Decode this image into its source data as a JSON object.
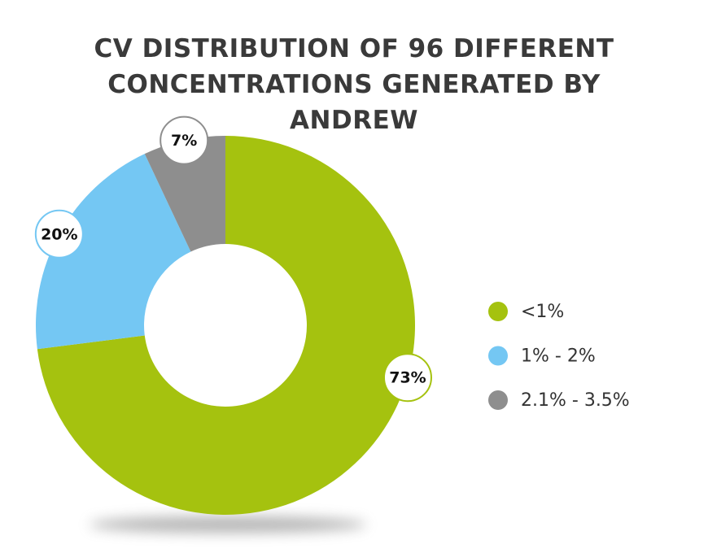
{
  "chart_data": {
    "type": "pie",
    "donut": true,
    "title": "CV DISTRIBUTION OF 96 DIFFERENT CONCENTRATIONS GENERATED BY ANDREW",
    "categories": [
      "<1%",
      "1% - 2%",
      "2.1% - 3.5%"
    ],
    "values": [
      73,
      20,
      7
    ],
    "value_labels": [
      "73%",
      "20%",
      "7%"
    ],
    "colors": [
      "#a5c20f",
      "#74c7f3",
      "#8e8e8e"
    ],
    "legend": "right"
  }
}
